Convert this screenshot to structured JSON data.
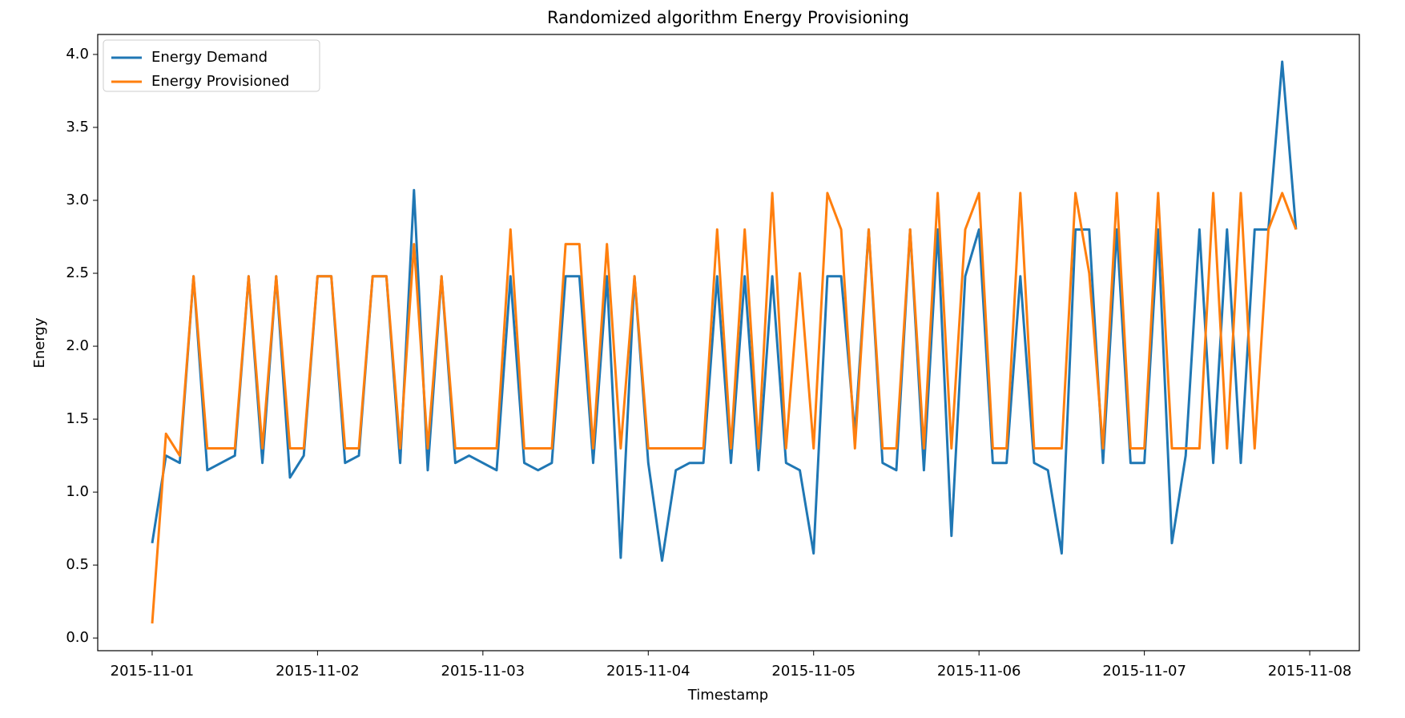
{
  "chart_data": {
    "type": "line",
    "title": "Randomized algorithm Energy Provisioning",
    "x_label": "Timestamp",
    "y_label": "Energy",
    "x": [
      0,
      2,
      4,
      6,
      8,
      10,
      12,
      14,
      16,
      18,
      20,
      22,
      24,
      26,
      28,
      30,
      32,
      34,
      36,
      38,
      40,
      42,
      44,
      46,
      48,
      50,
      52,
      54,
      56,
      58,
      60,
      62,
      64,
      66,
      68,
      70,
      72,
      74,
      76,
      78,
      80,
      82,
      84,
      86,
      88,
      90,
      92,
      94,
      96,
      98,
      100,
      102,
      104,
      106,
      108,
      110,
      112,
      114,
      116,
      118,
      120,
      122,
      124,
      126,
      128,
      130,
      132,
      134,
      136,
      138,
      140,
      142,
      144,
      146,
      148,
      150,
      152,
      154,
      156,
      158,
      160,
      162,
      164,
      166
    ],
    "series": [
      {
        "name": "Energy Demand",
        "color": "#1f77b4",
        "values": [
          0.65,
          1.25,
          1.2,
          2.48,
          1.15,
          1.2,
          1.25,
          2.48,
          1.2,
          2.48,
          1.1,
          1.25,
          2.48,
          2.48,
          1.2,
          1.25,
          2.48,
          2.48,
          1.2,
          3.07,
          1.15,
          2.48,
          1.2,
          1.25,
          1.2,
          1.15,
          2.48,
          1.2,
          1.15,
          1.2,
          2.48,
          2.48,
          1.2,
          2.48,
          0.55,
          2.48,
          1.2,
          0.53,
          1.15,
          1.2,
          1.2,
          2.48,
          1.2,
          2.48,
          1.15,
          2.48,
          1.2,
          1.15,
          0.58,
          2.48,
          2.48,
          1.4,
          2.8,
          1.2,
          1.15,
          2.8,
          1.15,
          2.8,
          0.7,
          2.48,
          2.8,
          1.2,
          1.2,
          2.48,
          1.2,
          1.15,
          0.58,
          2.8,
          2.8,
          1.2,
          2.8,
          1.2,
          1.2,
          2.8,
          0.65,
          1.25,
          2.8,
          1.2,
          2.8,
          1.2,
          2.8,
          2.8,
          3.95,
          2.8
        ]
      },
      {
        "name": "Energy Provisioned",
        "color": "#ff7f0e",
        "values": [
          0.1,
          1.4,
          1.25,
          2.48,
          1.3,
          1.3,
          1.3,
          2.48,
          1.3,
          2.48,
          1.3,
          1.3,
          2.48,
          2.48,
          1.3,
          1.3,
          2.48,
          2.48,
          1.3,
          2.7,
          1.3,
          2.48,
          1.3,
          1.3,
          1.3,
          1.3,
          2.8,
          1.3,
          1.3,
          1.3,
          2.7,
          2.7,
          1.3,
          2.7,
          1.3,
          2.48,
          1.3,
          1.3,
          1.3,
          1.3,
          1.3,
          2.8,
          1.3,
          2.8,
          1.3,
          3.05,
          1.3,
          2.5,
          1.3,
          3.05,
          2.8,
          1.3,
          2.8,
          1.3,
          1.3,
          2.8,
          1.3,
          3.05,
          1.3,
          2.8,
          3.05,
          1.3,
          1.3,
          3.05,
          1.3,
          1.3,
          1.3,
          3.05,
          2.5,
          1.3,
          3.05,
          1.3,
          1.3,
          3.05,
          1.3,
          1.3,
          1.3,
          3.05,
          1.3,
          3.05,
          1.3,
          2.8,
          3.05,
          2.8
        ]
      }
    ],
    "xlim": [
      -7.9,
      175.2
    ],
    "xticks": [
      {
        "value": 0,
        "label": "2015-11-01"
      },
      {
        "value": 24,
        "label": "2015-11-02"
      },
      {
        "value": 48,
        "label": "2015-11-03"
      },
      {
        "value": 72,
        "label": "2015-11-04"
      },
      {
        "value": 96,
        "label": "2015-11-05"
      },
      {
        "value": 120,
        "label": "2015-11-06"
      },
      {
        "value": 144,
        "label": "2015-11-07"
      },
      {
        "value": 168,
        "label": "2015-11-08"
      }
    ],
    "ylim": [
      -0.087,
      4.137
    ],
    "yticks": [
      {
        "value": 0,
        "label": "0.0"
      },
      0.5,
      {
        "value": 1,
        "label": "1.0"
      },
      1.5,
      {
        "value": 2,
        "label": "2.0"
      },
      2.5,
      {
        "value": 3,
        "label": "3.0"
      },
      3.5,
      {
        "value": 4,
        "label": "4.0"
      }
    ],
    "legend": "upper left"
  }
}
